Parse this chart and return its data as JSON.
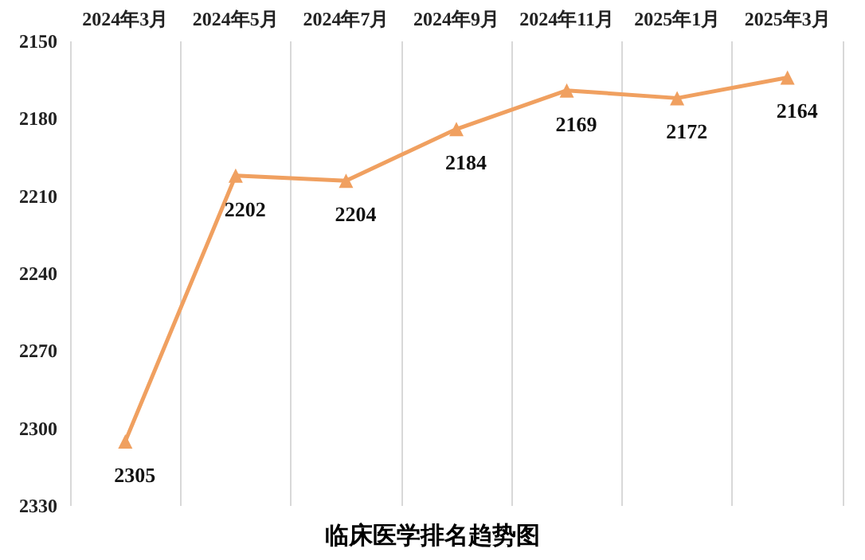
{
  "chart_data": {
    "type": "line",
    "title": "临床医学排名趋势图",
    "categories": [
      "2024年3月",
      "2024年5月",
      "2024年7月",
      "2024年9月",
      "2024年11月",
      "2025年1月",
      "2025年3月"
    ],
    "series": [
      {
        "color": "#f0a060",
        "values": [
          2305,
          2202,
          2204,
          2184,
          2169,
          2172,
          2164
        ]
      }
    ],
    "ylim": [
      2330,
      2150
    ],
    "yticks": [
      2150,
      2180,
      2210,
      2240,
      2270,
      2300,
      2330
    ],
    "grid": "x",
    "marker": "triangle",
    "line_style": "solid",
    "data_labels": true
  }
}
